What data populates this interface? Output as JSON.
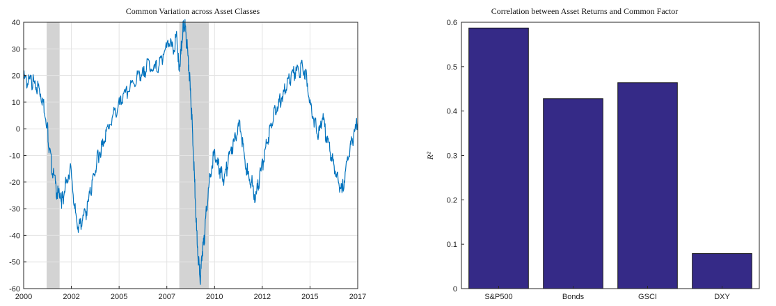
{
  "chart_data": [
    {
      "type": "line",
      "title": "Common Variation across Asset Classes",
      "xlabel": "",
      "ylabel": "",
      "xlim": [
        2000,
        2017
      ],
      "ylim": [
        -60,
        40
      ],
      "x_ticks": [
        "2000",
        "2002",
        "2005",
        "2007",
        "2010",
        "2012",
        "2015",
        "2017"
      ],
      "y_ticks": [
        "40",
        "30",
        "20",
        "10",
        "0",
        "-10",
        "-20",
        "-30",
        "-40",
        "-50",
        "-60"
      ],
      "grid": true,
      "line_color": "#0072bd",
      "recession_color": "#d3d3d3",
      "recessions": [
        [
          2001.17,
          2001.83
        ],
        [
          2007.92,
          2009.42
        ]
      ],
      "series": [
        {
          "x": [
            2000.0,
            2000.2,
            2000.4,
            2000.6,
            2000.8,
            2001.0,
            2001.2,
            2001.3,
            2001.5,
            2001.7,
            2001.9,
            2002.0,
            2002.2,
            2002.4,
            2002.6,
            2002.8,
            2003.0,
            2003.2,
            2003.4,
            2003.6,
            2003.8,
            2004.0,
            2004.2,
            2004.5,
            2004.8,
            2005.0,
            2005.3,
            2005.6,
            2005.9,
            2006.1,
            2006.3,
            2006.6,
            2006.9,
            2007.1,
            2007.4,
            2007.6,
            2007.8,
            2007.9,
            2008.0,
            2008.1,
            2008.2,
            2008.3,
            2008.4,
            2008.5,
            2008.6,
            2008.7,
            2008.8,
            2008.9,
            2009.0,
            2009.1,
            2009.2,
            2009.3,
            2009.5,
            2009.7,
            2009.9,
            2010.0,
            2010.2,
            2010.4,
            2010.6,
            2010.8,
            2011.0,
            2011.2,
            2011.4,
            2011.6,
            2011.8,
            2012.0,
            2012.2,
            2012.4,
            2012.6,
            2012.8,
            2013.0,
            2013.2,
            2013.4,
            2013.6,
            2013.8,
            2014.0,
            2014.2,
            2014.4,
            2014.6,
            2014.8,
            2015.0,
            2015.2,
            2015.4,
            2015.6,
            2015.8,
            2016.0,
            2016.2,
            2016.4,
            2016.6,
            2016.8,
            2017.0
          ],
          "values": [
            19,
            17,
            18,
            16,
            15,
            10,
            2,
            -8,
            -17,
            -24,
            -27,
            -26,
            -19,
            -14,
            -30,
            -37,
            -34,
            -31,
            -24,
            -17,
            -10,
            -6,
            -1,
            4,
            8,
            10,
            14,
            17,
            21,
            20,
            26,
            22,
            24,
            28,
            32,
            30,
            34,
            22,
            28,
            37,
            39,
            32,
            24,
            12,
            -2,
            -20,
            -38,
            -50,
            -56,
            -46,
            -41,
            -31,
            -17,
            -9,
            -13,
            -16,
            -19,
            -13,
            -7,
            -4,
            3,
            -8,
            -17,
            -20,
            -26,
            -19,
            -12,
            -5,
            2,
            8,
            10,
            13,
            16,
            19,
            21,
            22,
            23,
            20,
            9,
            3,
            -3,
            4,
            -3,
            -9,
            -14,
            -19,
            -24,
            -14,
            -8,
            -2,
            2
          ]
        }
      ]
    },
    {
      "type": "bar",
      "title": "Correlation between Asset Returns and Common Factor",
      "xlabel": "",
      "ylabel": "R²",
      "categories": [
        "S&P500",
        "Bonds",
        "GSCI",
        "DXY"
      ],
      "values": [
        0.587,
        0.428,
        0.464,
        0.079
      ],
      "ylim": [
        0,
        0.6
      ],
      "y_ticks": [
        "0.6",
        "0.5",
        "0.4",
        "0.3",
        "0.2",
        "0.1",
        "0"
      ],
      "grid": false,
      "bar_color": "#352a87"
    }
  ]
}
